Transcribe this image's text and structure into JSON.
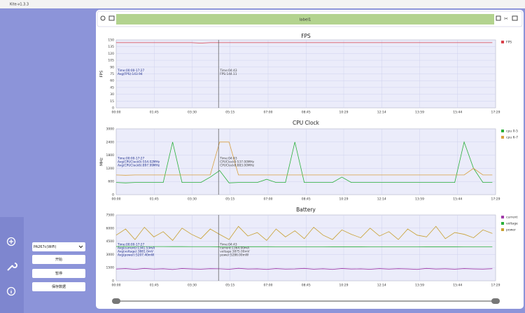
{
  "ui": {
    "window_title": "Kite-v1.3.3",
    "label": "label1",
    "device": "PA267c(WiFi)",
    "buttons": [
      "开始",
      "暂停",
      "保存数据"
    ]
  },
  "chart_data": [
    {
      "type": "line",
      "title": "FPS",
      "ylabel": "FPS",
      "xlim": [
        0,
        1049
      ],
      "ylim": [
        0,
        150
      ],
      "grid": true,
      "legend": "upper right",
      "cursor": 283,
      "yticks": [
        0,
        15,
        30,
        45,
        60,
        75,
        90,
        105,
        120,
        135,
        150
      ],
      "xticks": [
        {
          "value": 0,
          "label": "00:00"
        },
        {
          "value": 105,
          "label": "01:45"
        },
        {
          "value": 210,
          "label": "03:30"
        },
        {
          "value": 315,
          "label": "05:15"
        },
        {
          "value": 420,
          "label": "07:00"
        },
        {
          "value": 525,
          "label": "08:45"
        },
        {
          "value": 629,
          "label": "10:29"
        },
        {
          "value": 734,
          "label": "12:14"
        },
        {
          "value": 839,
          "label": "13:59"
        },
        {
          "value": 944,
          "label": "15:44"
        },
        {
          "value": 1049,
          "label": "17:29"
        }
      ],
      "x": [
        0,
        26,
        52,
        78,
        104,
        130,
        156,
        182,
        208,
        234,
        260,
        286,
        312,
        338,
        364,
        390,
        416,
        442,
        468,
        494,
        520,
        546,
        572,
        598,
        624,
        650,
        676,
        702,
        728,
        754,
        780,
        806,
        832,
        858,
        884,
        910,
        936,
        962,
        988,
        1014,
        1040
      ],
      "series": [
        {
          "name": "FPS",
          "color": "#d9404a",
          "values": [
            144,
            144,
            144,
            144,
            144,
            144,
            144,
            144,
            144,
            143,
            144,
            144,
            144,
            144,
            144,
            144,
            144,
            144,
            144,
            144,
            144,
            144,
            144,
            144,
            144,
            144,
            144,
            144,
            144,
            144,
            144,
            144,
            144,
            144,
            144,
            144,
            144,
            144,
            144,
            144,
            144
          ]
        }
      ],
      "annotations": [
        [
          "Time:00:00-17:27",
          "Avg(FPS):143.94"
        ],
        [
          "Time:04:43",
          "FPS:144.11"
        ]
      ]
    },
    {
      "type": "line",
      "title": "CPU Clock",
      "ylabel": "MHz",
      "xlim": [
        0,
        1049
      ],
      "ylim": [
        0,
        3000
      ],
      "grid": true,
      "legend": "upper right",
      "cursor": 283,
      "yticks": [
        0,
        600,
        1200,
        1800,
        2400,
        3000
      ],
      "xticks": [
        {
          "value": 0,
          "label": "00:00"
        },
        {
          "value": 105,
          "label": "01:45"
        },
        {
          "value": 210,
          "label": "03:30"
        },
        {
          "value": 315,
          "label": "05:15"
        },
        {
          "value": 420,
          "label": "07:00"
        },
        {
          "value": 525,
          "label": "08:45"
        },
        {
          "value": 629,
          "label": "10:29"
        },
        {
          "value": 734,
          "label": "12:14"
        },
        {
          "value": 839,
          "label": "13:59"
        },
        {
          "value": 944,
          "label": "15:44"
        },
        {
          "value": 1049,
          "label": "17:29"
        }
      ],
      "x": [
        0,
        26,
        52,
        78,
        104,
        130,
        156,
        182,
        208,
        234,
        260,
        286,
        312,
        338,
        364,
        390,
        416,
        442,
        468,
        494,
        520,
        546,
        572,
        598,
        624,
        650,
        676,
        702,
        728,
        754,
        780,
        806,
        832,
        858,
        884,
        910,
        936,
        962,
        988,
        1014,
        1040
      ],
      "series": [
        {
          "name": "cpu 0-5",
          "color": "#2ab03a",
          "values": [
            554,
            537,
            554,
            554,
            554,
            554,
            2400,
            554,
            554,
            554,
            800,
            1100,
            537,
            554,
            554,
            554,
            700,
            554,
            554,
            2400,
            554,
            554,
            554,
            554,
            800,
            554,
            554,
            554,
            554,
            554,
            554,
            554,
            554,
            554,
            554,
            554,
            554,
            2400,
            1200,
            554,
            554
          ]
        },
        {
          "name": "cpu 6-7",
          "color": "#d8a040",
          "values": [
            898,
            883,
            898,
            898,
            898,
            898,
            898,
            898,
            898,
            898,
            898,
            2400,
            2400,
            898,
            898,
            898,
            898,
            898,
            898,
            898,
            898,
            898,
            898,
            898,
            898,
            898,
            898,
            898,
            898,
            898,
            898,
            898,
            898,
            898,
            898,
            898,
            898,
            898,
            1200,
            898,
            898
          ]
        }
      ],
      "annotations": [
        [
          "Time:00:00-17:27",
          "Avg(CPUClock0):554.02MHz",
          "Avg(CPUClock6):897.99MHz"
        ],
        [
          "Time:04:43",
          "CPUClock0:537.00MHz",
          "CPUClock6:883.00MHz"
        ]
      ]
    },
    {
      "type": "line",
      "title": "Battery",
      "xlim": [
        0,
        1049
      ],
      "ylim": [
        0,
        7500
      ],
      "grid": true,
      "legend": "upper right",
      "cursor": 283,
      "yticks": [
        0,
        1500,
        3000,
        4500,
        6000,
        7500
      ],
      "xticks": [
        {
          "value": 0,
          "label": "00:00"
        },
        {
          "value": 105,
          "label": "01:45"
        },
        {
          "value": 210,
          "label": "03:30"
        },
        {
          "value": 315,
          "label": "05:15"
        },
        {
          "value": 420,
          "label": "07:00"
        },
        {
          "value": 525,
          "label": "08:45"
        },
        {
          "value": 629,
          "label": "10:29"
        },
        {
          "value": 734,
          "label": "12:14"
        },
        {
          "value": 839,
          "label": "13:59"
        },
        {
          "value": 944,
          "label": "15:44"
        },
        {
          "value": 1049,
          "label": "17:29"
        }
      ],
      "x": [
        0,
        26,
        52,
        78,
        104,
        130,
        156,
        182,
        208,
        234,
        260,
        286,
        312,
        338,
        364,
        390,
        416,
        442,
        468,
        494,
        520,
        546,
        572,
        598,
        624,
        650,
        676,
        702,
        728,
        754,
        780,
        806,
        832,
        858,
        884,
        910,
        936,
        962,
        988,
        1014,
        1040
      ],
      "series": [
        {
          "name": "current",
          "color": "#a03aa8",
          "values": [
            1340,
            1390,
            1300,
            1410,
            1330,
            1370,
            1290,
            1400,
            1350,
            1320,
            1380,
            1364,
            1310,
            1420,
            1340,
            1360,
            1300,
            1390,
            1330,
            1350,
            1410,
            1320,
            1370,
            1300,
            1400,
            1340,
            1360,
            1310,
            1390,
            1330,
            1380,
            1350,
            1300,
            1410,
            1340,
            1370,
            1320,
            1390,
            1350,
            1330,
            1380
          ]
        },
        {
          "name": "voltage",
          "color": "#2ab03a",
          "values": [
            3905,
            3903,
            3902,
            3900,
            3899,
            3897,
            3896,
            3894,
            3892,
            3890,
            3889,
            3875,
            3887,
            3886,
            3885,
            3884,
            3883,
            3882,
            3881,
            3880,
            3879,
            3878,
            3877,
            3876,
            3875,
            3874,
            3873,
            3872,
            3871,
            3870,
            3869,
            3868,
            3867,
            3866,
            3865,
            3864,
            3863,
            3862,
            3861,
            3860,
            3860
          ]
        },
        {
          "name": "power",
          "color": "#c8a030",
          "values": [
            5200,
            5900,
            4700,
            6100,
            5000,
            5600,
            4600,
            6000,
            5300,
            4800,
            5900,
            5286,
            4700,
            6200,
            5100,
            5500,
            4600,
            5900,
            5000,
            5700,
            4800,
            6100,
            5200,
            4700,
            5800,
            5300,
            4900,
            6000,
            5100,
            5600,
            4700,
            5900,
            5200,
            5000,
            6200,
            4800,
            5500,
            5300,
            4900,
            5800,
            5400
          ]
        }
      ],
      "annotations": [
        [
          "Time:00:00-17:27",
          "Avg(current):1341.53mA",
          "Avg(voltage):3881.0mV",
          "Avg(power):5207.40mW"
        ],
        [
          "Time:04:43",
          "current:1364.00mA",
          "voltage:3875.00mV",
          "power:5286.00mW"
        ]
      ]
    }
  ]
}
